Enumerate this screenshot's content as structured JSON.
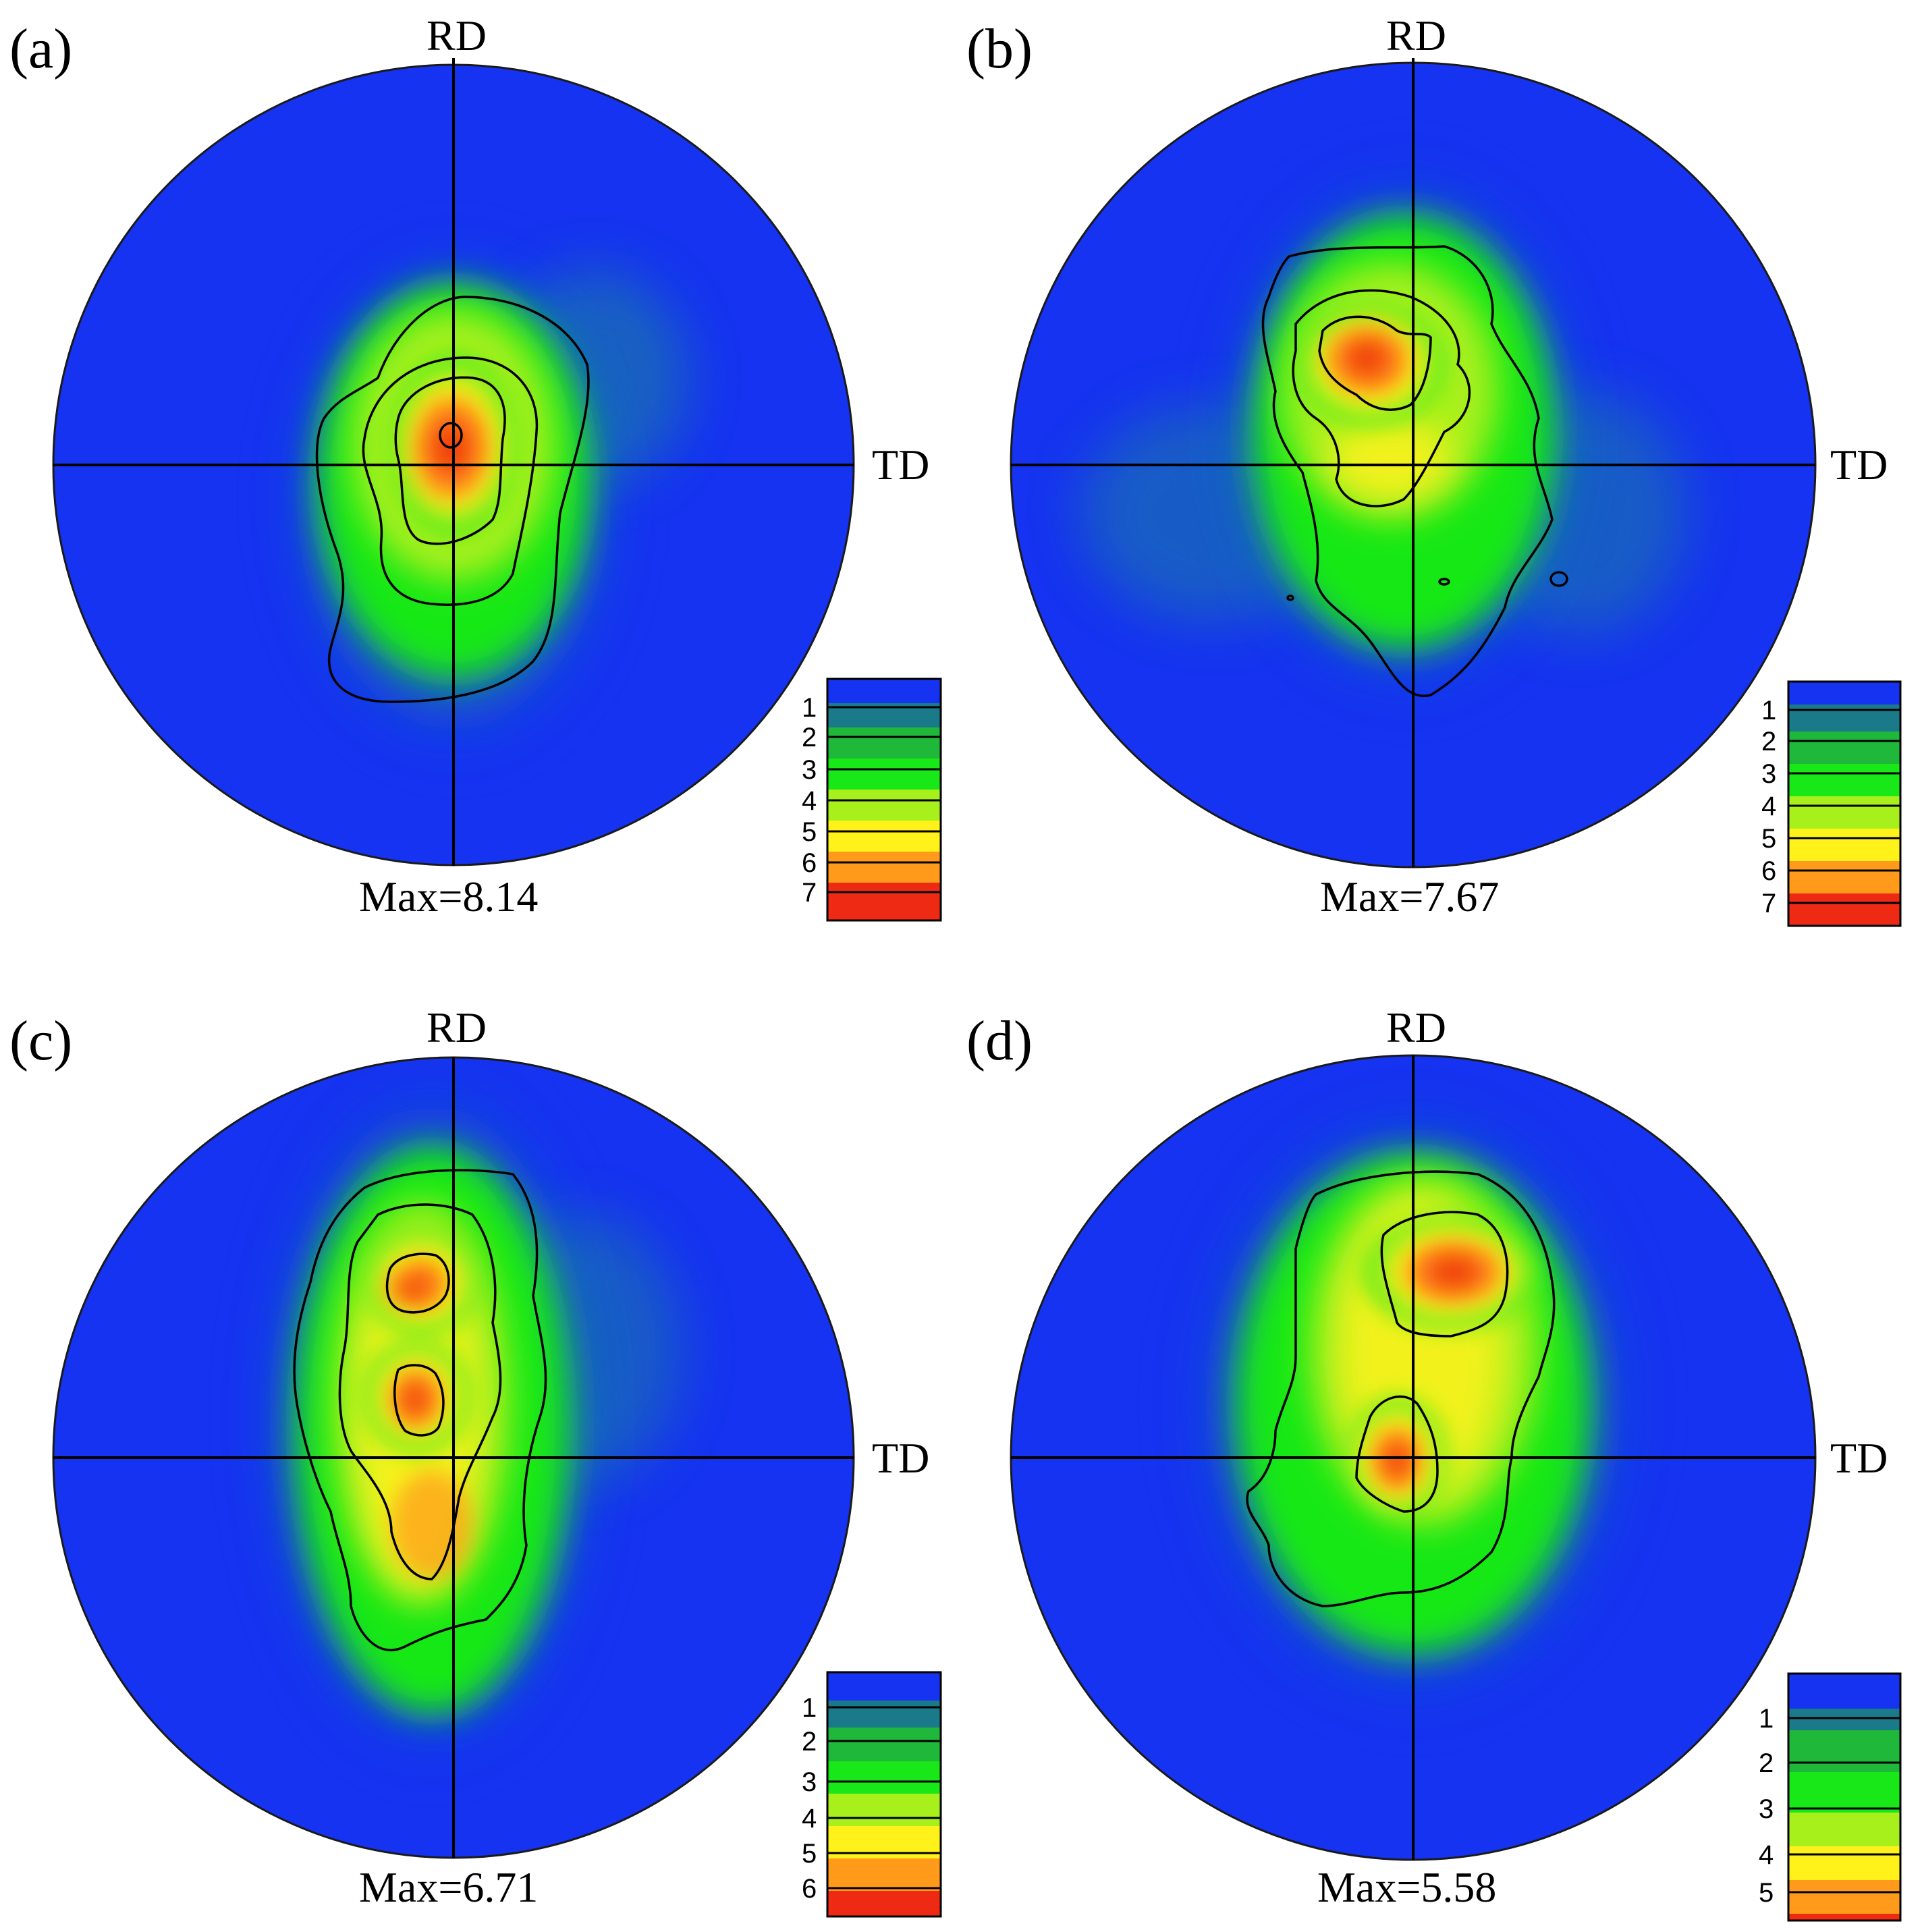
{
  "figure": {
    "panels": [
      {
        "id": "a",
        "label": "(a)",
        "rd_label": "RD",
        "td_label": "TD",
        "max_text": "Max=8.14",
        "max_value": 8.14,
        "colorbar_levels": [
          "1",
          "2",
          "3",
          "4",
          "5",
          "6",
          "7"
        ]
      },
      {
        "id": "b",
        "label": "(b)",
        "rd_label": "RD",
        "td_label": "TD",
        "max_text": "Max=7.67",
        "max_value": 7.67,
        "colorbar_levels": [
          "1",
          "2",
          "3",
          "4",
          "5",
          "6",
          "7"
        ]
      },
      {
        "id": "c",
        "label": "(c)",
        "rd_label": "RD",
        "td_label": "TD",
        "max_text": "Max=6.71",
        "max_value": 6.71,
        "colorbar_levels": [
          "1",
          "2",
          "3",
          "4",
          "5",
          "6"
        ]
      },
      {
        "id": "d",
        "label": "(d)",
        "rd_label": "RD",
        "td_label": "TD",
        "max_text": "Max=5.58",
        "max_value": 5.58,
        "colorbar_levels": [
          "1",
          "2",
          "3",
          "4",
          "5"
        ]
      }
    ],
    "colors": {
      "background_low": "#1533f0",
      "level_2": "#1fb83a",
      "level_3": "#18e818",
      "level_4": "#a8f01c",
      "level_5": "#fff21a",
      "level_6": "#ff9a1a",
      "level_7": "#ee2a14",
      "contour": "#000000"
    }
  }
}
